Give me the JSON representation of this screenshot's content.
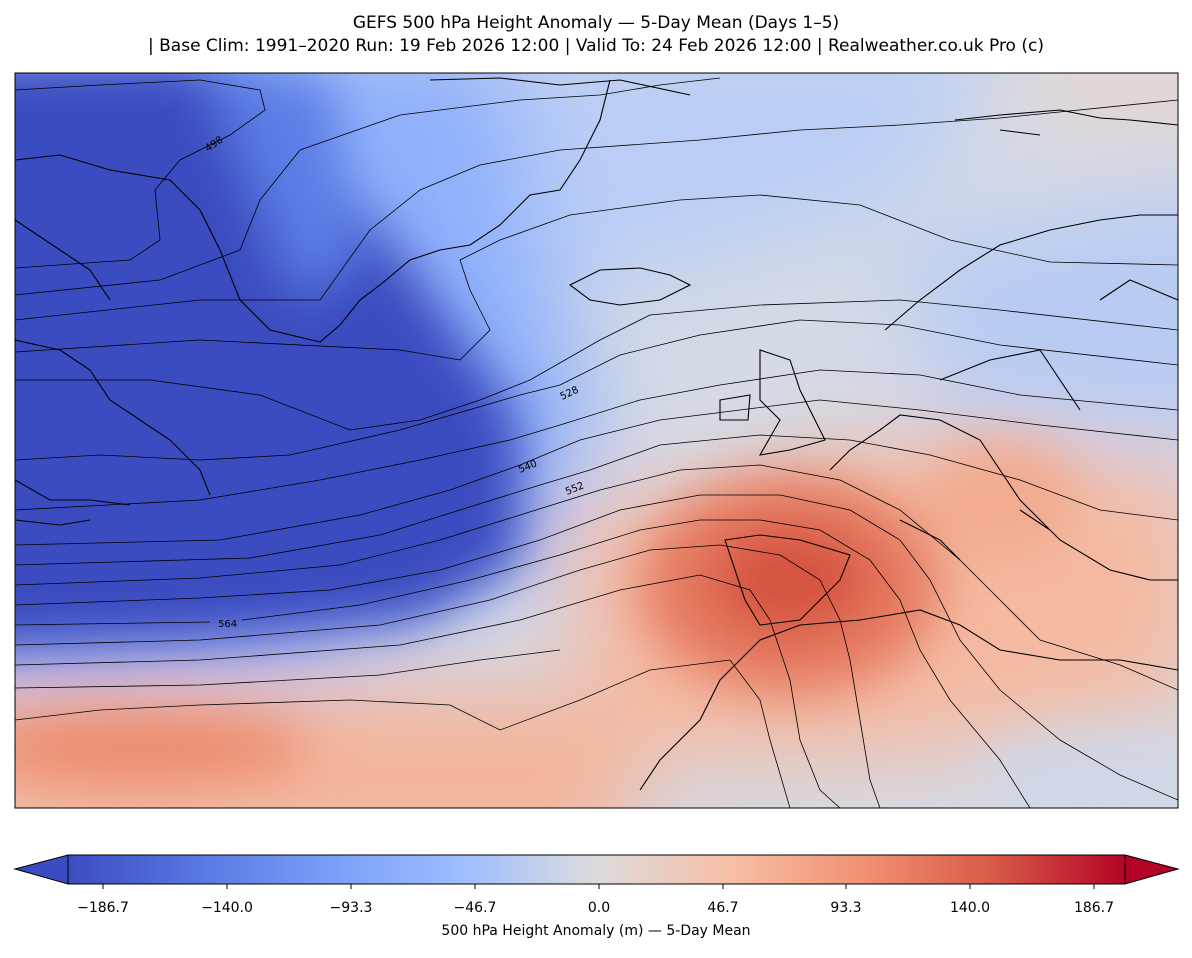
{
  "header": {
    "title": "GEFS 500 hPa Height Anomaly — 5-Day Mean (Days 1–5)",
    "subtitle": "| Base Clim: 1991–2020 Run: 19 Feb 2026 12:00 | Valid To: 24 Feb 2026 12:00 | Realweather.co.uk Pro (c)"
  },
  "map": {
    "contour_labels": [
      "498",
      "528",
      "540",
      "552",
      "564"
    ],
    "colors": {
      "cold": "#3b4cc0",
      "neutral": "#dddcdc",
      "warm": "#b40426"
    }
  },
  "colorbar": {
    "label": "500 hPa Height Anomaly (m) — 5-Day Mean",
    "min": -210,
    "max": 210,
    "ticks": [
      "−186.7",
      "−140.0",
      "−93.3",
      "−46.7",
      "0.0",
      "46.7",
      "93.3",
      "140.0",
      "186.7"
    ]
  }
}
